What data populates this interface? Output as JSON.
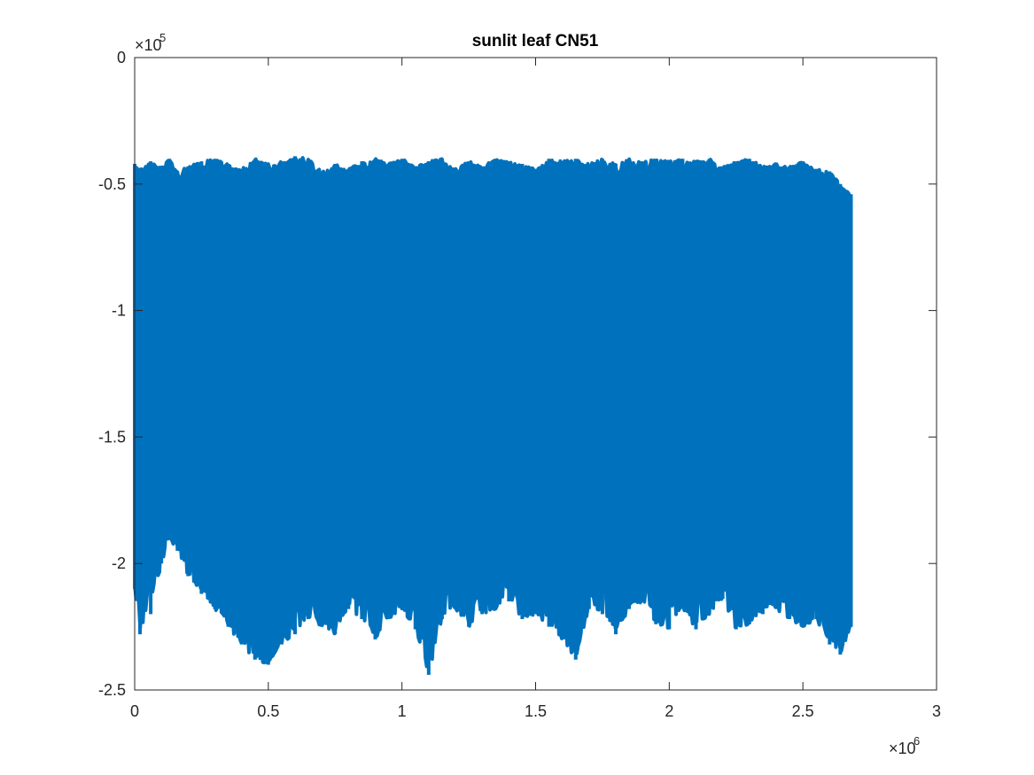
{
  "chart_data": {
    "type": "line",
    "title": "sunlit leaf CN51",
    "xlabel": "",
    "ylabel": "",
    "xlim": [
      0,
      3000000
    ],
    "ylim": [
      -250000,
      0
    ],
    "x_ticks": [
      0,
      500000,
      1000000,
      1500000,
      2000000,
      2500000,
      3000000
    ],
    "x_tick_labels": [
      "0",
      "0.5",
      "1",
      "1.5",
      "2",
      "2.5",
      "3"
    ],
    "y_ticks": [
      -250000,
      -200000,
      -150000,
      -100000,
      -50000,
      0
    ],
    "y_tick_labels": [
      "-2.5",
      "-2",
      "-1.5",
      "-1",
      "-0.5",
      "0"
    ],
    "x_exponent": "×10",
    "x_exponent_power": "6",
    "y_exponent": "×10",
    "y_exponent_power": "5",
    "grid": false,
    "series": [
      {
        "color": "#0072BD",
        "x_range": [
          0,
          2680000
        ],
        "envelope": {
          "x": [
            0,
            20000,
            60000,
            100000,
            130000,
            160000,
            200000,
            250000,
            300000,
            350000,
            400000,
            450000,
            500000,
            550000,
            600000,
            650000,
            700000,
            750000,
            800000,
            850000,
            900000,
            950000,
            1000000,
            1050000,
            1100000,
            1150000,
            1200000,
            1250000,
            1300000,
            1350000,
            1400000,
            1450000,
            1500000,
            1550000,
            1600000,
            1650000,
            1700000,
            1750000,
            1800000,
            1850000,
            1900000,
            1950000,
            2000000,
            2050000,
            2100000,
            2150000,
            2200000,
            2250000,
            2300000,
            2350000,
            2400000,
            2450000,
            2500000,
            2550000,
            2600000,
            2640000,
            2680000
          ],
          "upper": [
            -42000,
            -44000,
            -41000,
            -43000,
            -40000,
            -45000,
            -43000,
            -41000,
            -40000,
            -42000,
            -44000,
            -40000,
            -42000,
            -41000,
            -39000,
            -40000,
            -45000,
            -42000,
            -44000,
            -41000,
            -40000,
            -42000,
            -40000,
            -43000,
            -41000,
            -40000,
            -44000,
            -41000,
            -43000,
            -40000,
            -41000,
            -42000,
            -44000,
            -40000,
            -41000,
            -40000,
            -42000,
            -40000,
            -42000,
            -40000,
            -41000,
            -40000,
            -41000,
            -40000,
            -41000,
            -40000,
            -43000,
            -41000,
            -40000,
            -43000,
            -42000,
            -43000,
            -41000,
            -44000,
            -45000,
            -50000,
            -54000
          ],
          "lower": [
            -210000,
            -228000,
            -220000,
            -200000,
            -190000,
            -195000,
            -205000,
            -212000,
            -218000,
            -225000,
            -232000,
            -238000,
            -240000,
            -232000,
            -228000,
            -222000,
            -225000,
            -228000,
            -218000,
            -222000,
            -230000,
            -222000,
            -218000,
            -226000,
            -244000,
            -222000,
            -218000,
            -225000,
            -220000,
            -218000,
            -215000,
            -222000,
            -220000,
            -225000,
            -230000,
            -238000,
            -218000,
            -220000,
            -228000,
            -218000,
            -215000,
            -224000,
            -226000,
            -218000,
            -226000,
            -220000,
            -214000,
            -226000,
            -224000,
            -220000,
            -218000,
            -222000,
            -225000,
            -222000,
            -232000,
            -236000,
            -225000
          ]
        }
      }
    ]
  }
}
